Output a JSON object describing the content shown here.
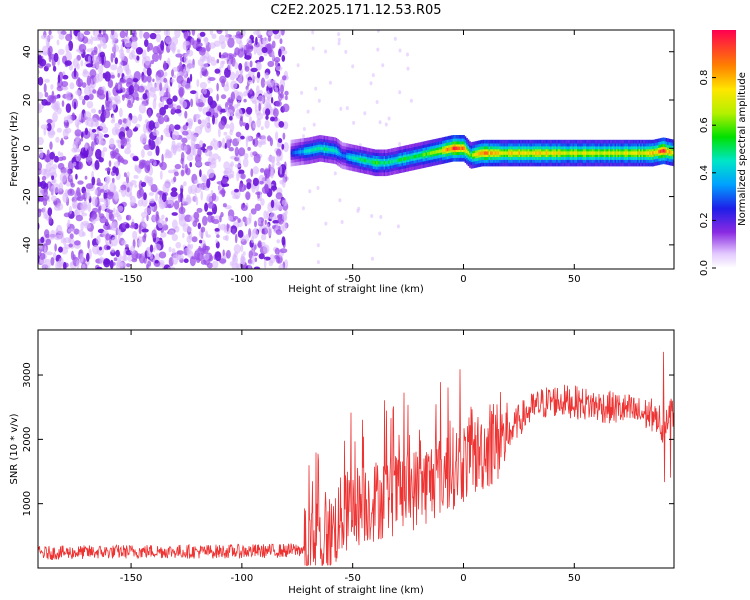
{
  "title": "C2E2.2025.171.12.53.R05",
  "colors": {
    "series_line": "#ee3333",
    "axes": "#000000"
  },
  "chart_data": [
    {
      "type": "heatmap",
      "xlabel": "Height of straight line (km)",
      "ylabel": "Frequency (Hz)",
      "xlim": [
        -192,
        95
      ],
      "ylim": [
        -50,
        49
      ],
      "x_ticks": [
        -150,
        -100,
        -50,
        0,
        50
      ],
      "y_ticks": [
        -40,
        -20,
        0,
        20,
        40
      ],
      "colorbar": {
        "label": "Normalized spectral amplitude",
        "range": [
          0,
          1
        ],
        "ticks": [
          "0.0",
          "0.2",
          "0.4",
          "0.6",
          "0.8"
        ],
        "tick_values": [
          0,
          0.2,
          0.4,
          0.6,
          0.8
        ]
      },
      "noise_region": {
        "x_range": [
          -192,
          -78
        ],
        "freq_range": [
          -50,
          49
        ],
        "amplitude": 0.05
      },
      "ridge": {
        "x": [
          -78,
          -70,
          -65,
          -58,
          -55,
          -50,
          -45,
          -40,
          -35,
          -30,
          -25,
          -20,
          -15,
          -10,
          -5,
          0,
          3,
          8,
          15,
          30,
          50,
          70,
          85,
          90,
          95
        ],
        "freq": [
          -2,
          -1,
          0,
          -1,
          -3,
          -4,
          -5,
          -6,
          -6,
          -5,
          -4,
          -3,
          -2,
          -1,
          0,
          0,
          -3,
          -2,
          -2,
          -2,
          -2,
          -2,
          -2,
          -1,
          -2
        ],
        "amplitude": [
          0.25,
          0.45,
          0.5,
          0.45,
          0.3,
          0.45,
          0.5,
          0.55,
          0.5,
          0.5,
          0.55,
          0.55,
          0.6,
          0.7,
          0.95,
          0.9,
          0.6,
          0.85,
          0.75,
          0.75,
          0.7,
          0.7,
          0.75,
          0.9,
          0.7
        ]
      }
    },
    {
      "type": "line",
      "xlabel": "Height of straight line (km)",
      "ylabel": "SNR (10 * v/v)",
      "xlim": [
        -192,
        95
      ],
      "ylim": [
        0,
        3700
      ],
      "x_ticks": [
        -150,
        -100,
        -50,
        0,
        50
      ],
      "y_ticks": [
        1000,
        2000,
        3000
      ],
      "series": [
        {
          "x": [
            -192,
            -180,
            -160,
            -140,
            -120,
            -100,
            -80,
            -72,
            -65,
            -60,
            -55,
            -50,
            -45,
            -40,
            -35,
            -30,
            -25,
            -20,
            -15,
            -10,
            -5,
            0,
            5,
            10,
            15,
            20,
            25,
            30,
            35,
            40,
            45,
            50,
            55,
            60,
            65,
            70,
            75,
            80,
            85,
            88,
            90,
            92,
            95
          ],
          "y": [
            230,
            240,
            250,
            260,
            255,
            260,
            270,
            290,
            380,
            520,
            800,
            950,
            1000,
            1050,
            1100,
            1150,
            1200,
            1250,
            1350,
            1450,
            1550,
            1650,
            1750,
            1850,
            1950,
            2050,
            2300,
            2450,
            2550,
            2600,
            2600,
            2580,
            2550,
            2520,
            2500,
            2480,
            2450,
            2400,
            2380,
            2350,
            2150,
            2400,
            2450
          ]
        }
      ]
    }
  ]
}
